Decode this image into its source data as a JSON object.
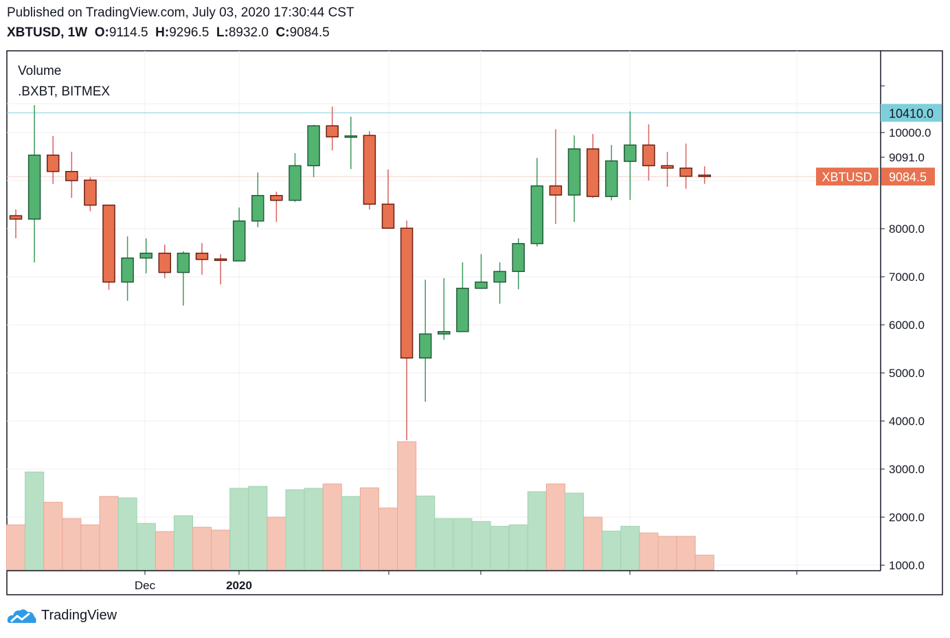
{
  "header": {
    "published": "Published on TradingView.com, July 03, 2020 17:30:44 CST",
    "symbol": "XBTUSD, 1W",
    "o_label": "O:",
    "o_value": "9114.5",
    "h_label": "H:",
    "h_value": "9296.5",
    "l_label": "L:",
    "l_value": "8932.0",
    "c_label": "C:",
    "c_value": "9084.5"
  },
  "legend": {
    "indicator": "Volume",
    "source": ".BXBT, BITMEX"
  },
  "footer": {
    "brand": "TradingView"
  },
  "colors": {
    "up": "#53b371",
    "down": "#e8714f",
    "up_volume": "#b7e0c4",
    "down_volume": "#f5c4b5",
    "high_line": "#7ecfdc",
    "last_price": "#e8714f"
  },
  "chart_data": {
    "type": "candlestick",
    "symbol": "XBTUSD",
    "interval": "1W",
    "ylim": [
      900,
      10900
    ],
    "grid": true,
    "x_tick_labels": [
      {
        "label": "Dec",
        "index": 7,
        "bold": false
      },
      {
        "label": "2020",
        "index": 12,
        "bold": true
      }
    ],
    "y_tick_labels": [
      "10000.0",
      "9091.0",
      "8000.0",
      "7000.0",
      "6000.0",
      "5000.0",
      "4000.0",
      "3000.0",
      "2000.0",
      "1000.0"
    ],
    "y_tick_values": [
      10000,
      9091,
      8000,
      7000,
      6000,
      5000,
      4000,
      3000,
      2000,
      1000
    ],
    "high_marker": {
      "value": 10410.0,
      "label": "10410.0"
    },
    "last_price": {
      "value": 9084.5,
      "label": "9084.5",
      "symbol_label": "XBTUSD"
    },
    "ohlc": [
      [
        8270,
        8400,
        7800,
        8200
      ],
      [
        8200,
        10570,
        7300,
        9530
      ],
      [
        9530,
        9930,
        8930,
        9190
      ],
      [
        9190,
        9600,
        8640,
        9000
      ],
      [
        9010,
        9070,
        8360,
        8490
      ],
      [
        8490,
        8490,
        6730,
        6890
      ],
      [
        6890,
        7840,
        6500,
        7390
      ],
      [
        7390,
        7800,
        7070,
        7490
      ],
      [
        7490,
        7670,
        6970,
        7090
      ],
      [
        7090,
        7530,
        6400,
        7490
      ],
      [
        7490,
        7700,
        7040,
        7360
      ],
      [
        7370,
        7470,
        6840,
        7340
      ],
      [
        7330,
        8440,
        7330,
        8160
      ],
      [
        8160,
        9170,
        8030,
        8690
      ],
      [
        8690,
        8770,
        8140,
        8590
      ],
      [
        8590,
        9570,
        8560,
        9310
      ],
      [
        9310,
        10160,
        9070,
        10140
      ],
      [
        10140,
        10540,
        9630,
        9910
      ],
      [
        9920,
        10330,
        9240,
        9930
      ],
      [
        9940,
        10030,
        8400,
        8510
      ],
      [
        8510,
        9230,
        8010,
        8010
      ],
      [
        8010,
        8170,
        3600,
        5310
      ],
      [
        5310,
        6940,
        4400,
        5810
      ],
      [
        5810,
        6970,
        5690,
        5860
      ],
      [
        5860,
        7300,
        5860,
        6760
      ],
      [
        6760,
        7470,
        6760,
        6890
      ],
      [
        6890,
        7300,
        6440,
        7110
      ],
      [
        7110,
        7800,
        6740,
        7690
      ],
      [
        7690,
        9470,
        7630,
        8890
      ],
      [
        8890,
        10070,
        8100,
        8700
      ],
      [
        8700,
        9940,
        8140,
        9660
      ],
      [
        9660,
        9970,
        8640,
        8670
      ],
      [
        8670,
        9740,
        8590,
        9410
      ],
      [
        9400,
        10440,
        8600,
        9740
      ],
      [
        9740,
        10170,
        9000,
        9310
      ],
      [
        9310,
        9600,
        8870,
        9260
      ],
      [
        9260,
        9770,
        8830,
        9090
      ],
      [
        9114.5,
        9296.5,
        8932.0,
        9084.5
      ]
    ],
    "volume": [
      1840,
      2940,
      2310,
      1970,
      1840,
      2430,
      2400,
      1870,
      1700,
      2030,
      1790,
      1730,
      2600,
      2640,
      2000,
      2570,
      2600,
      2690,
      2430,
      2610,
      2190,
      3570,
      2440,
      1970,
      1970,
      1910,
      1810,
      1840,
      2530,
      2690,
      2500,
      2000,
      1710,
      1810,
      1670,
      1600,
      1600,
      1210
    ]
  }
}
